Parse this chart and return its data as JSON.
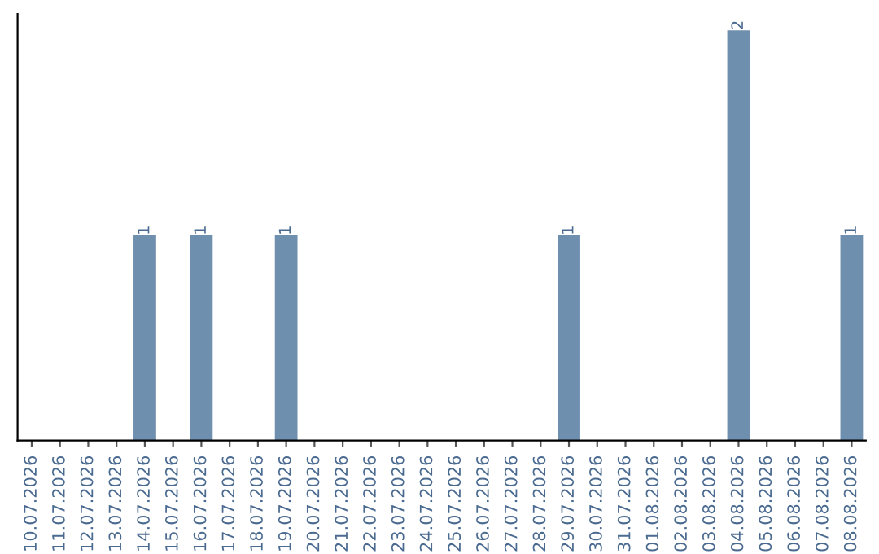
{
  "chart_data": {
    "type": "bar",
    "categories": [
      "10.07.2026",
      "11.07.2026",
      "12.07.2026",
      "13.07.2026",
      "14.07.2026",
      "15.07.2026",
      "16.07.2026",
      "17.07.2026",
      "18.07.2026",
      "19.07.2026",
      "20.07.2026",
      "21.07.2026",
      "22.07.2026",
      "23.07.2026",
      "24.07.2026",
      "25.07.2026",
      "26.07.2026",
      "27.07.2026",
      "28.07.2026",
      "29.07.2026",
      "30.07.2026",
      "31.07.2026",
      "01.08.2026",
      "02.08.2026",
      "03.08.2026",
      "04.08.2026",
      "05.08.2026",
      "06.08.2026",
      "07.08.2026",
      "08.08.2026"
    ],
    "values": [
      0,
      0,
      0,
      0,
      1,
      0,
      1,
      0,
      0,
      1,
      0,
      0,
      0,
      0,
      0,
      0,
      0,
      0,
      0,
      1,
      0,
      0,
      0,
      0,
      0,
      2,
      0,
      0,
      0,
      1
    ],
    "value_labels": [
      null,
      null,
      null,
      null,
      "1",
      null,
      "1",
      null,
      null,
      "1",
      null,
      null,
      null,
      null,
      null,
      null,
      null,
      null,
      null,
      "1",
      null,
      null,
      null,
      null,
      null,
      "2",
      null,
      null,
      null,
      "1"
    ],
    "color": "#6f8fae",
    "tick_labels": "x",
    "grid": false,
    "legend": false
  }
}
